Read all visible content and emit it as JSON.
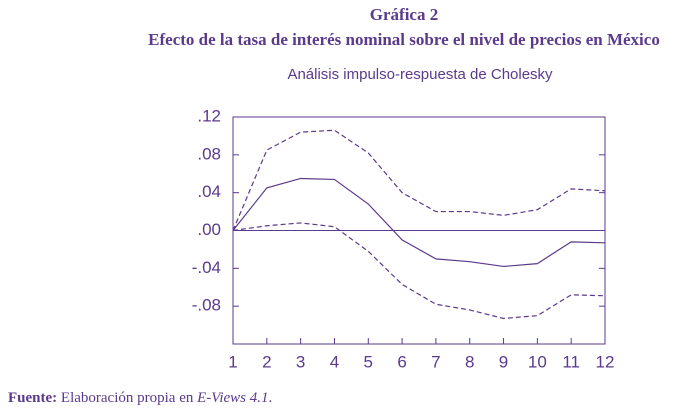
{
  "chart_data": {
    "type": "line",
    "title": "Gráfica 2",
    "subtitle": "Efecto de la tasa de interés nominal sobre el nivel de precios en México",
    "caption": "Análisis impulso-respuesta de Cholesky",
    "x": [
      1,
      2,
      3,
      4,
      5,
      6,
      7,
      8,
      9,
      10,
      11,
      12
    ],
    "xlim": [
      1,
      12
    ],
    "xticks": [
      1,
      2,
      3,
      4,
      5,
      6,
      7,
      8,
      9,
      10,
      11,
      12
    ],
    "ylim": [
      -0.12,
      0.12
    ],
    "yticks": [
      {
        "value": 0.12,
        "label": ".12"
      },
      {
        "value": 0.08,
        "label": ".08"
      },
      {
        "value": 0.04,
        "label": ".04"
      },
      {
        "value": 0,
        "label": ".00"
      },
      {
        "value": -0.04,
        "label": "-.04"
      },
      {
        "value": -0.08,
        "label": "-.08"
      }
    ],
    "zero_line": true,
    "color": "#5b3a8c",
    "series": [
      {
        "style": "solid",
        "color": "#5b3a8c",
        "values": [
          0.0,
          0.045,
          0.055,
          0.054,
          0.028,
          -0.01,
          -0.03,
          -0.033,
          -0.038,
          -0.035,
          -0.012,
          -0.013
        ]
      },
      {
        "style": "dashed",
        "color": "#5b3a8c",
        "values": [
          0.0,
          0.085,
          0.104,
          0.106,
          0.082,
          0.04,
          0.02,
          0.02,
          0.016,
          0.022,
          0.044,
          0.042
        ]
      },
      {
        "style": "dashed",
        "color": "#5b3a8c",
        "values": [
          0.0,
          0.005,
          0.008,
          0.004,
          -0.022,
          -0.057,
          -0.078,
          -0.084,
          -0.093,
          -0.09,
          -0.068,
          -0.069
        ]
      }
    ],
    "source": {
      "label": "Fuente:",
      "text": "Elaboración propia en",
      "software": "E-Views 4.1",
      "end": "."
    }
  }
}
